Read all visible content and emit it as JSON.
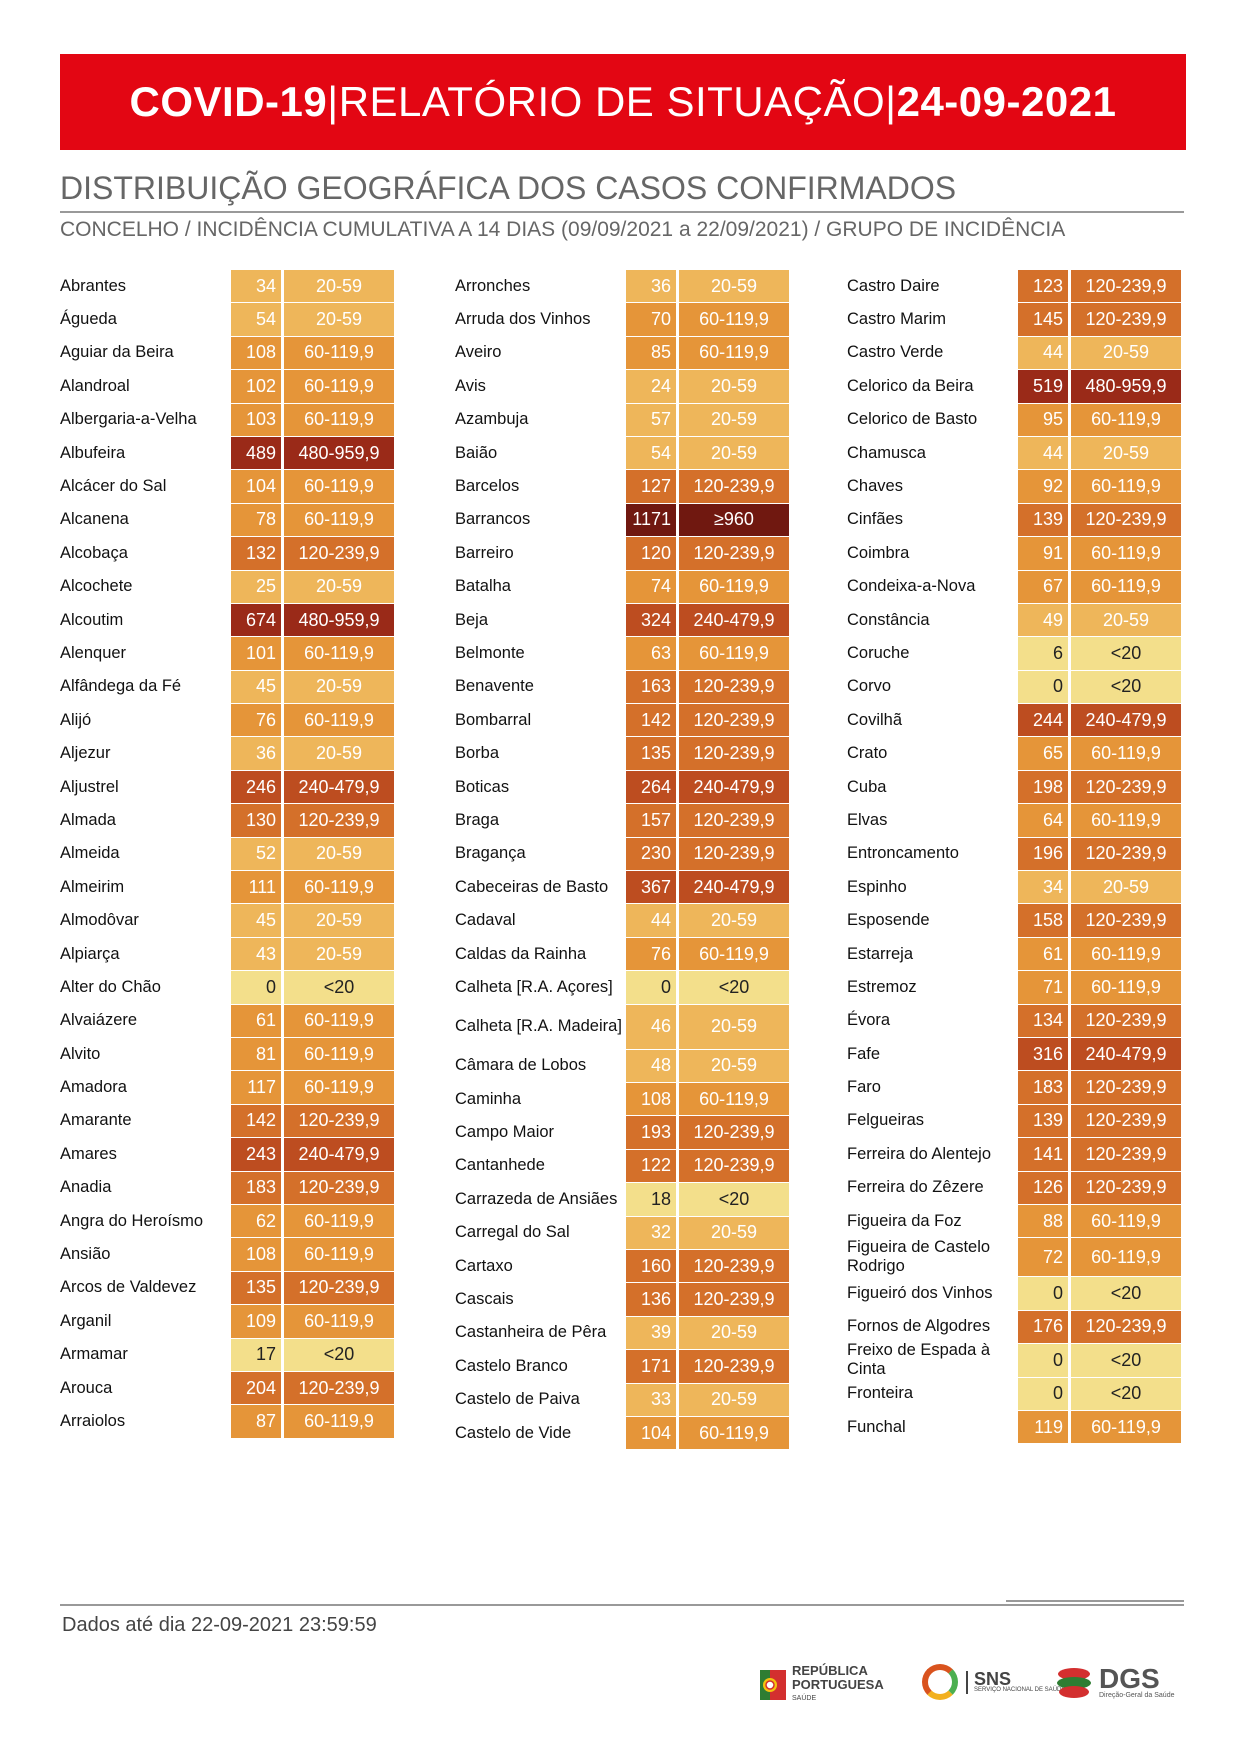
{
  "header": {
    "title_bold": "COVID-19",
    "sep1": " | ",
    "title_middle": "RELATÓRIO DE SITUAÇÃO",
    "sep2": " | ",
    "title_date": "24-09-2021"
  },
  "section": {
    "title": "DISTRIBUIÇÃO GEOGRÁFICA DOS CASOS CONFIRMADOS",
    "subtitle": "CONCELHO / INCIDÊNCIA CUMULATIVA A 14 DIAS (09/09/2021 a 22/09/2021) / GRUPO DE INCIDÊNCIA"
  },
  "colors": {
    "<20": "#f3df8b",
    "20-59": "#eeb65a",
    "60-119,9": "#e59539",
    "120-239,9": "#d4702a",
    "240-479,9": "#bd4d20",
    "480-959,9": "#9a2a18",
    "≥960": "#701810"
  },
  "columns": [
    [
      {
        "name": "Abrantes",
        "value": "34",
        "group": "20-59"
      },
      {
        "name": "Águeda",
        "value": "54",
        "group": "20-59"
      },
      {
        "name": "Aguiar da Beira",
        "value": "108",
        "group": "60-119,9"
      },
      {
        "name": "Alandroal",
        "value": "102",
        "group": "60-119,9"
      },
      {
        "name": "Albergaria-a-Velha",
        "value": "103",
        "group": "60-119,9"
      },
      {
        "name": "Albufeira",
        "value": "489",
        "group": "480-959,9"
      },
      {
        "name": "Alcácer do Sal",
        "value": "104",
        "group": "60-119,9"
      },
      {
        "name": "Alcanena",
        "value": "78",
        "group": "60-119,9"
      },
      {
        "name": "Alcobaça",
        "value": "132",
        "group": "120-239,9"
      },
      {
        "name": "Alcochete",
        "value": "25",
        "group": "20-59"
      },
      {
        "name": "Alcoutim",
        "value": "674",
        "group": "480-959,9"
      },
      {
        "name": "Alenquer",
        "value": "101",
        "group": "60-119,9"
      },
      {
        "name": "Alfândega da Fé",
        "value": "45",
        "group": "20-59"
      },
      {
        "name": "Alijó",
        "value": "76",
        "group": "60-119,9"
      },
      {
        "name": "Aljezur",
        "value": "36",
        "group": "20-59"
      },
      {
        "name": "Aljustrel",
        "value": "246",
        "group": "240-479,9"
      },
      {
        "name": "Almada",
        "value": "130",
        "group": "120-239,9"
      },
      {
        "name": "Almeida",
        "value": "52",
        "group": "20-59"
      },
      {
        "name": "Almeirim",
        "value": "111",
        "group": "60-119,9"
      },
      {
        "name": "Almodôvar",
        "value": "45",
        "group": "20-59"
      },
      {
        "name": "Alpiarça",
        "value": "43",
        "group": "20-59"
      },
      {
        "name": "Alter do Chão",
        "value": "0",
        "group": "<20"
      },
      {
        "name": "Alvaiázere",
        "value": "61",
        "group": "60-119,9"
      },
      {
        "name": "Alvito",
        "value": "81",
        "group": "60-119,9"
      },
      {
        "name": "Amadora",
        "value": "117",
        "group": "60-119,9"
      },
      {
        "name": "Amarante",
        "value": "142",
        "group": "120-239,9"
      },
      {
        "name": "Amares",
        "value": "243",
        "group": "240-479,9"
      },
      {
        "name": "Anadia",
        "value": "183",
        "group": "120-239,9"
      },
      {
        "name": "Angra do Heroísmo",
        "value": "62",
        "group": "60-119,9"
      },
      {
        "name": "Ansião",
        "value": "108",
        "group": "60-119,9"
      },
      {
        "name": "Arcos de Valdevez",
        "value": "135",
        "group": "120-239,9"
      },
      {
        "name": "Arganil",
        "value": "109",
        "group": "60-119,9"
      },
      {
        "name": "Armamar",
        "value": "17",
        "group": "<20"
      },
      {
        "name": "Arouca",
        "value": "204",
        "group": "120-239,9"
      },
      {
        "name": "Arraiolos",
        "value": "87",
        "group": "60-119,9"
      }
    ],
    [
      {
        "name": "Arronches",
        "value": "36",
        "group": "20-59"
      },
      {
        "name": "Arruda dos Vinhos",
        "value": "70",
        "group": "60-119,9"
      },
      {
        "name": "Aveiro",
        "value": "85",
        "group": "60-119,9"
      },
      {
        "name": "Avis",
        "value": "24",
        "group": "20-59"
      },
      {
        "name": "Azambuja",
        "value": "57",
        "group": "20-59"
      },
      {
        "name": "Baião",
        "value": "54",
        "group": "20-59"
      },
      {
        "name": "Barcelos",
        "value": "127",
        "group": "120-239,9"
      },
      {
        "name": "Barrancos",
        "value": "1171",
        "group": "≥960"
      },
      {
        "name": "Barreiro",
        "value": "120",
        "group": "120-239,9"
      },
      {
        "name": "Batalha",
        "value": "74",
        "group": "60-119,9"
      },
      {
        "name": "Beja",
        "value": "324",
        "group": "240-479,9"
      },
      {
        "name": "Belmonte",
        "value": "63",
        "group": "60-119,9"
      },
      {
        "name": "Benavente",
        "value": "163",
        "group": "120-239,9"
      },
      {
        "name": "Bombarral",
        "value": "142",
        "group": "120-239,9"
      },
      {
        "name": "Borba",
        "value": "135",
        "group": "120-239,9"
      },
      {
        "name": "Boticas",
        "value": "264",
        "group": "240-479,9"
      },
      {
        "name": "Braga",
        "value": "157",
        "group": "120-239,9"
      },
      {
        "name": "Bragança",
        "value": "230",
        "group": "120-239,9"
      },
      {
        "name": "Cabeceiras de Basto",
        "value": "367",
        "group": "240-479,9"
      },
      {
        "name": "Cadaval",
        "value": "44",
        "group": "20-59"
      },
      {
        "name": "Caldas da Rainha",
        "value": "76",
        "group": "60-119,9"
      },
      {
        "name": "Calheta [R.A. Açores]",
        "value": "0",
        "group": "<20"
      },
      {
        "name": "Calheta [R.A. Madeira]",
        "value": "46",
        "group": "20-59"
      },
      {
        "name": "Câmara de Lobos",
        "value": "48",
        "group": "20-59"
      },
      {
        "name": "Caminha",
        "value": "108",
        "group": "60-119,9"
      },
      {
        "name": "Campo Maior",
        "value": "193",
        "group": "120-239,9"
      },
      {
        "name": "Cantanhede",
        "value": "122",
        "group": "120-239,9"
      },
      {
        "name": "Carrazeda de Ansiães",
        "value": "18",
        "group": "<20"
      },
      {
        "name": "Carregal do Sal",
        "value": "32",
        "group": "20-59"
      },
      {
        "name": "Cartaxo",
        "value": "160",
        "group": "120-239,9"
      },
      {
        "name": "Cascais",
        "value": "136",
        "group": "120-239,9"
      },
      {
        "name": "Castanheira de Pêra",
        "value": "39",
        "group": "20-59"
      },
      {
        "name": "Castelo Branco",
        "value": "171",
        "group": "120-239,9"
      },
      {
        "name": "Castelo de Paiva",
        "value": "33",
        "group": "20-59"
      },
      {
        "name": "Castelo de Vide",
        "value": "104",
        "group": "60-119,9"
      }
    ],
    [
      {
        "name": "Castro Daire",
        "value": "123",
        "group": "120-239,9"
      },
      {
        "name": "Castro Marim",
        "value": "145",
        "group": "120-239,9"
      },
      {
        "name": "Castro Verde",
        "value": "44",
        "group": "20-59"
      },
      {
        "name": "Celorico da Beira",
        "value": "519",
        "group": "480-959,9"
      },
      {
        "name": "Celorico de Basto",
        "value": "95",
        "group": "60-119,9"
      },
      {
        "name": "Chamusca",
        "value": "44",
        "group": "20-59"
      },
      {
        "name": "Chaves",
        "value": "92",
        "group": "60-119,9"
      },
      {
        "name": "Cinfães",
        "value": "139",
        "group": "120-239,9"
      },
      {
        "name": "Coimbra",
        "value": "91",
        "group": "60-119,9"
      },
      {
        "name": "Condeixa-a-Nova",
        "value": "67",
        "group": "60-119,9"
      },
      {
        "name": "Constância",
        "value": "49",
        "group": "20-59"
      },
      {
        "name": "Coruche",
        "value": "6",
        "group": "<20"
      },
      {
        "name": "Corvo",
        "value": "0",
        "group": "<20"
      },
      {
        "name": "Covilhã",
        "value": "244",
        "group": "240-479,9"
      },
      {
        "name": "Crato",
        "value": "65",
        "group": "60-119,9"
      },
      {
        "name": "Cuba",
        "value": "198",
        "group": "120-239,9"
      },
      {
        "name": "Elvas",
        "value": "64",
        "group": "60-119,9"
      },
      {
        "name": "Entroncamento",
        "value": "196",
        "group": "120-239,9"
      },
      {
        "name": "Espinho",
        "value": "34",
        "group": "20-59"
      },
      {
        "name": "Esposende",
        "value": "158",
        "group": "120-239,9"
      },
      {
        "name": "Estarreja",
        "value": "61",
        "group": "60-119,9"
      },
      {
        "name": "Estremoz",
        "value": "71",
        "group": "60-119,9"
      },
      {
        "name": "Évora",
        "value": "134",
        "group": "120-239,9"
      },
      {
        "name": "Fafe",
        "value": "316",
        "group": "240-479,9"
      },
      {
        "name": "Faro",
        "value": "183",
        "group": "120-239,9"
      },
      {
        "name": "Felgueiras",
        "value": "139",
        "group": "120-239,9"
      },
      {
        "name": "Ferreira do Alentejo",
        "value": "141",
        "group": "120-239,9"
      },
      {
        "name": "Ferreira do Zêzere",
        "value": "126",
        "group": "120-239,9"
      },
      {
        "name": "Figueira da Foz",
        "value": "88",
        "group": "60-119,9"
      },
      {
        "name": "Figueira de Castelo Rodrigo",
        "value": "72",
        "group": "60-119,9"
      },
      {
        "name": "Figueiró dos Vinhos",
        "value": "0",
        "group": "<20"
      },
      {
        "name": "Fornos de Algodres",
        "value": "176",
        "group": "120-239,9"
      },
      {
        "name": "Freixo de Espada à Cinta",
        "value": "0",
        "group": "<20"
      },
      {
        "name": "Fronteira",
        "value": "0",
        "group": "<20"
      },
      {
        "name": "Funchal",
        "value": "119",
        "group": "60-119,9"
      }
    ]
  ],
  "footer": {
    "note": "Dados até dia 22-09-2021 23:59:59"
  },
  "logos": {
    "republica_line1": "REPÚBLICA",
    "republica_line2": "PORTUGUESA",
    "republica_line3": "SAÚDE",
    "sns_title": "SNS",
    "sns_sub": "SERVIÇO NACIONAL DE SAÚDE",
    "dgs_title": "DGS",
    "dgs_sub": "Direção-Geral da Saúde"
  }
}
